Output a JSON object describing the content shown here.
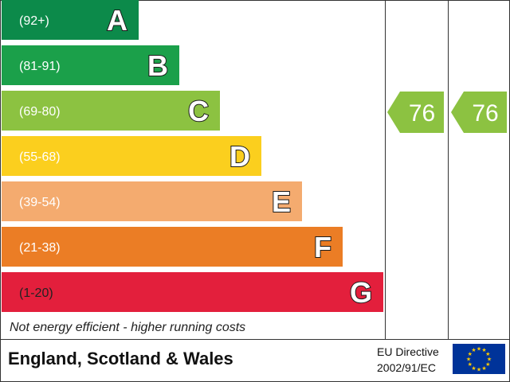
{
  "chart_data": {
    "type": "bar",
    "categories": [
      "A",
      "B",
      "C",
      "D",
      "E",
      "F",
      "G"
    ],
    "ranges": [
      "(92+)",
      "(81-91)",
      "(69-80)",
      "(55-68)",
      "(39-54)",
      "(21-38)",
      "(1-20)"
    ],
    "colors": [
      "#0c8a4a",
      "#1ba04a",
      "#8cc241",
      "#fbcf1e",
      "#f4ab6f",
      "#eb7d25",
      "#e31f3c"
    ],
    "current_rating": 76,
    "current_band": "C",
    "potential_rating": 76,
    "potential_band": "C",
    "rating_color": "#8cc241"
  },
  "footnote": "Not energy efficient - higher running costs",
  "footer": {
    "region": "England, Scotland & Wales",
    "directive_line1": "EU Directive",
    "directive_line2": "2002/91/EC",
    "flag_blue": "#003399",
    "flag_stars": "#ffcc00"
  }
}
